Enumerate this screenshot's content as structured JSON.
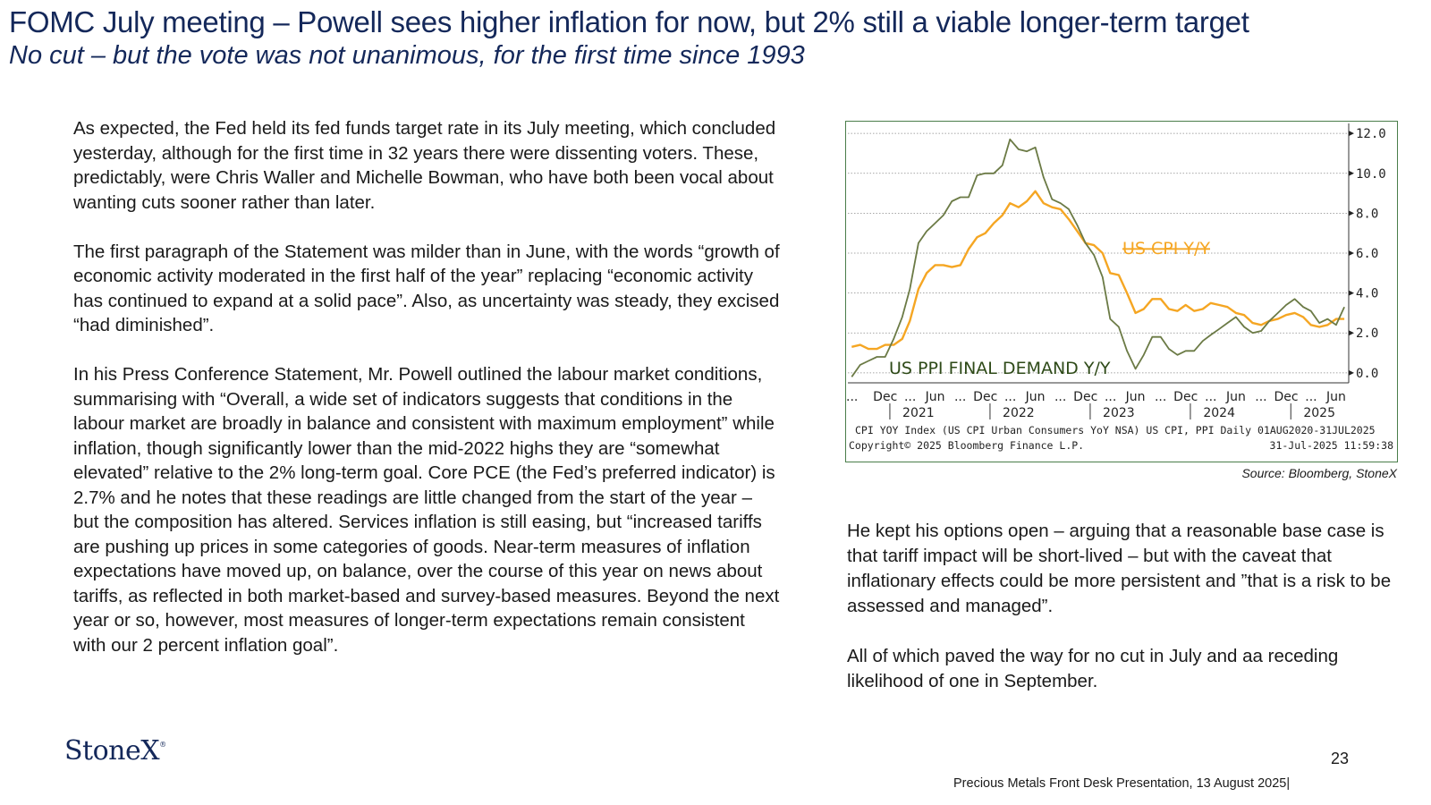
{
  "header": {
    "title": "FOMC July meeting – Powell sees higher inflation for now, but 2% still a viable longer-term target",
    "subtitle": "No cut – but the vote was not unanimous, for the first time since 1993"
  },
  "left_column": {
    "paragraphs": [
      "As expected, the Fed held its fed funds target rate in its July meeting, which concluded yesterday, although for the first time in 32 years there were dissenting voters.  These, predictably, were Chris Waller and Michelle Bowman, who have both been vocal about wanting cuts sooner rather than later.",
      "The first paragraph of the Statement was milder than in June, with the words “growth of economic activity moderated in the first half of the year” replacing “economic activity has continued to expand at a solid pace”.   Also, as uncertainty was steady, they excised “had diminished”.",
      "In his Press Conference Statement, Mr. Powell outlined the labour market conditions, summarising with “Overall, a wide set of indicators suggests that conditions in the labour market are broadly in balance and consistent with maximum employment” while inflation, though significantly lower than the mid-2022 highs  they are “somewhat elevated” relative to the  2% long-term goal. Core PCE (the Fed’s preferred indicator) is 2.7% and he notes that these readings are little changed from the start of the year – but the composition has altered.  Services inflation is still easing, but “increased tariffs are pushing up prices in some categories of goods.  Near-term measures of inflation expectations have moved up, on balance, over the course of this year on news about tariffs, as reflected in both market-based and survey-based measures. Beyond the next year or so, however, most measures of longer-term expectations remain consistent with our 2 percent inflation goal”."
    ]
  },
  "right_column": {
    "paragraphs": [
      "He kept his options open – arguing that a reasonable base case is that tariff impact will be short-lived – but with the caveat that inflationary effects could be more persistent and ”that is a  risk to be assessed and managed”.",
      "All of which paved the way for no cut in July and aa receding likelihood of one in September."
    ]
  },
  "chart_data": {
    "type": "line",
    "series": [
      {
        "name": "US CPI Y/Y",
        "color": "#f5a623",
        "x": [
          "2020-08",
          "2020-09",
          "2020-10",
          "2020-11",
          "2020-12",
          "2021-01",
          "2021-02",
          "2021-03",
          "2021-04",
          "2021-05",
          "2021-06",
          "2021-07",
          "2021-08",
          "2021-09",
          "2021-10",
          "2021-11",
          "2021-12",
          "2022-01",
          "2022-02",
          "2022-03",
          "2022-04",
          "2022-05",
          "2022-06",
          "2022-07",
          "2022-08",
          "2022-09",
          "2022-10",
          "2022-11",
          "2022-12",
          "2023-01",
          "2023-02",
          "2023-03",
          "2023-04",
          "2023-05",
          "2023-06",
          "2023-07",
          "2023-08",
          "2023-09",
          "2023-10",
          "2023-11",
          "2023-12",
          "2024-01",
          "2024-02",
          "2024-03",
          "2024-04",
          "2024-05",
          "2024-06",
          "2024-07",
          "2024-08",
          "2024-09",
          "2024-10",
          "2024-11",
          "2024-12",
          "2025-01",
          "2025-02",
          "2025-03",
          "2025-04",
          "2025-05",
          "2025-06",
          "2025-07"
        ],
        "values": [
          1.3,
          1.4,
          1.2,
          1.2,
          1.4,
          1.4,
          1.7,
          2.6,
          4.2,
          5.0,
          5.4,
          5.4,
          5.3,
          5.4,
          6.2,
          6.8,
          7.0,
          7.5,
          7.9,
          8.5,
          8.3,
          8.6,
          9.1,
          8.5,
          8.3,
          8.2,
          7.7,
          7.1,
          6.5,
          6.4,
          6.0,
          5.0,
          4.9,
          4.0,
          3.0,
          3.2,
          3.7,
          3.7,
          3.2,
          3.1,
          3.4,
          3.1,
          3.2,
          3.5,
          3.4,
          3.3,
          3.0,
          2.9,
          2.5,
          2.4,
          2.6,
          2.7,
          2.9,
          3.0,
          2.8,
          2.4,
          2.3,
          2.4,
          2.7,
          2.7
        ]
      },
      {
        "name": "US PPI FINAL DEMAND Y/Y",
        "color": "#6b7a45",
        "x": [
          "2020-08",
          "2020-09",
          "2020-10",
          "2020-11",
          "2020-12",
          "2021-01",
          "2021-02",
          "2021-03",
          "2021-04",
          "2021-05",
          "2021-06",
          "2021-07",
          "2021-08",
          "2021-09",
          "2021-10",
          "2021-11",
          "2021-12",
          "2022-01",
          "2022-02",
          "2022-03",
          "2022-04",
          "2022-05",
          "2022-06",
          "2022-07",
          "2022-08",
          "2022-09",
          "2022-10",
          "2022-11",
          "2022-12",
          "2023-01",
          "2023-02",
          "2023-03",
          "2023-04",
          "2023-05",
          "2023-06",
          "2023-07",
          "2023-08",
          "2023-09",
          "2023-10",
          "2023-11",
          "2023-12",
          "2024-01",
          "2024-02",
          "2024-03",
          "2024-04",
          "2024-05",
          "2024-06",
          "2024-07",
          "2024-08",
          "2024-09",
          "2024-10",
          "2024-11",
          "2024-12",
          "2025-01",
          "2025-02",
          "2025-03",
          "2025-04",
          "2025-05",
          "2025-06",
          "2025-07"
        ],
        "values": [
          -0.2,
          0.4,
          0.6,
          0.8,
          0.8,
          1.7,
          2.8,
          4.2,
          6.5,
          7.1,
          7.5,
          7.9,
          8.6,
          8.8,
          8.8,
          9.9,
          10.0,
          10.0,
          10.4,
          11.7,
          11.2,
          11.1,
          11.3,
          9.8,
          8.7,
          8.5,
          8.2,
          7.4,
          6.5,
          5.9,
          4.8,
          2.7,
          2.3,
          1.1,
          0.2,
          0.9,
          1.8,
          1.8,
          1.2,
          0.9,
          1.1,
          1.1,
          1.6,
          1.9,
          2.2,
          2.5,
          2.8,
          2.3,
          2.0,
          2.1,
          2.6,
          3.0,
          3.4,
          3.7,
          3.3,
          3.1,
          2.5,
          2.7,
          2.4,
          3.3
        ]
      }
    ],
    "ylim": [
      -0.5,
      12.5
    ],
    "y_ticks": [
      "0.0",
      "2.0",
      "4.0",
      "6.0",
      "8.0",
      "10.0",
      "12.0"
    ],
    "y_axis_position": "right",
    "grid": true,
    "x_month_labels": [
      "Dec",
      "Jun",
      "Dec",
      "Jun",
      "Dec",
      "Jun",
      "Dec",
      "Jun",
      "Dec",
      "Jun"
    ],
    "x_year_labels": [
      "2021",
      "2022",
      "2023",
      "2024",
      "2025"
    ],
    "series_labels": {
      "cpi": "US CPI Y/Y",
      "ppi": "US PPI FINAL DEMAND Y/Y"
    },
    "footer_line1": "CPI YOY Index (US CPI Urban Consumers YoY NSA) US CPI, PPI  Daily 01AUG2020-31JUL2025",
    "footer_copyright": "Copyright© 2025 Bloomberg Finance L.P.",
    "footer_timestamp": "31-Jul-2025 11:59:38"
  },
  "source_note": "Source: Bloomberg, StoneX",
  "logo": {
    "text": "StoneX",
    "mark": "®"
  },
  "page_number": "23",
  "footer_text": "Precious Metals Front Desk Presentation, 13 August 2025|"
}
